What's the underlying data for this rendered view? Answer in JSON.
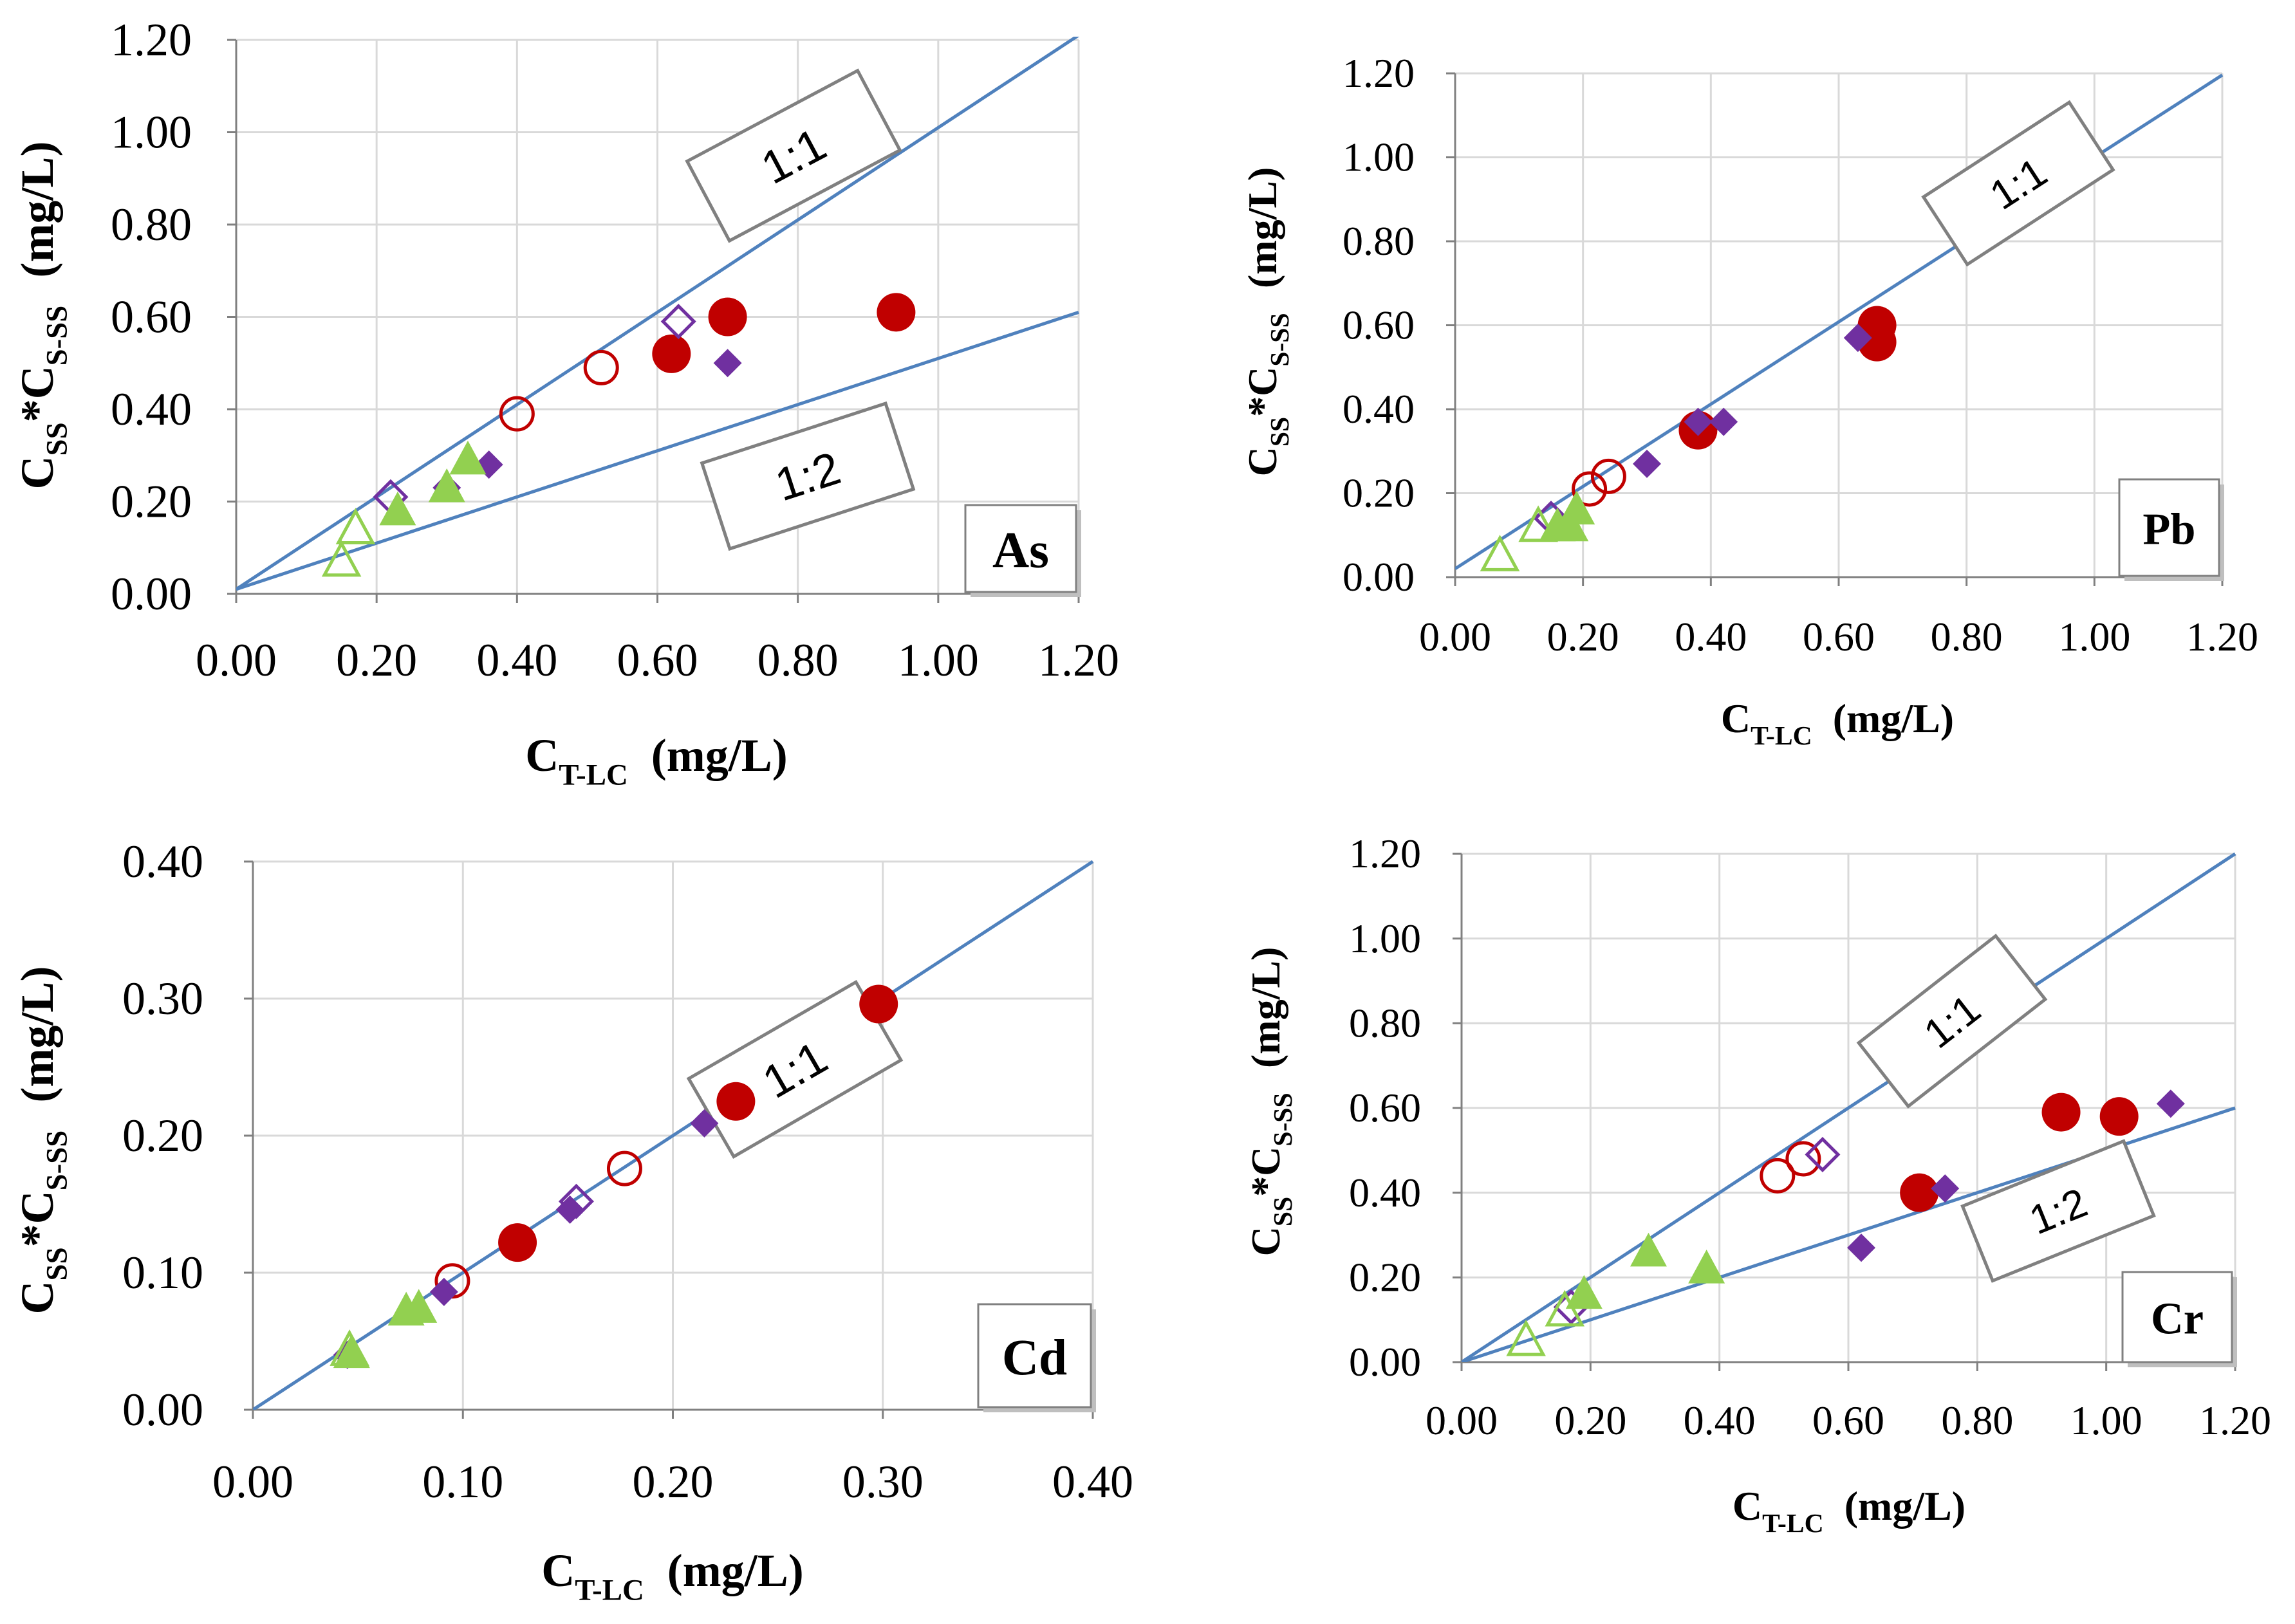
{
  "figure": {
    "description_colors": {
      "red": "#C00000",
      "purple": "#7030A0",
      "green": "#92D050",
      "line": "#4F81BD",
      "grid": "#D9D9D9",
      "box": "#808080"
    }
  },
  "chart_data": [
    {
      "id": "as",
      "type": "scatter",
      "element": "As",
      "xlabel_main": "C",
      "xlabel_sub": "T-LC",
      "xlabel_unit": "(mg/L)",
      "ylabel_c1": "C",
      "ylabel_s1": "SS",
      "ylabel_star": "*",
      "ylabel_c2": "C",
      "ylabel_s2": "S-SS",
      "ylabel_unit": "(mg/L)",
      "xlim": [
        0,
        1.2
      ],
      "ylim": [
        0,
        1.2
      ],
      "xticks": [
        "0.00",
        "0.20",
        "0.40",
        "0.60",
        "0.80",
        "1.00",
        "1.20"
      ],
      "yticks": [
        "0.00",
        "0.20",
        "0.40",
        "0.60",
        "0.80",
        "1.00",
        "1.20"
      ],
      "tick_values": [
        0,
        0.2,
        0.4,
        0.6,
        0.8,
        1.0,
        1.2
      ],
      "lines": [
        {
          "label": "1:1",
          "slope": 1.0,
          "intercept": 0.01
        },
        {
          "label": "1:2",
          "slope": 0.5,
          "intercept": 0.01
        }
      ],
      "series": [
        {
          "name": "red-filled",
          "marker": "circle",
          "filled": true,
          "color": "#C00000",
          "points": [
            [
              0.62,
              0.52
            ],
            [
              0.7,
              0.6
            ],
            [
              0.94,
              0.61
            ]
          ]
        },
        {
          "name": "red-open",
          "marker": "circle",
          "filled": false,
          "color": "#C00000",
          "points": [
            [
              0.4,
              0.39
            ],
            [
              0.52,
              0.49
            ]
          ]
        },
        {
          "name": "purple-filled",
          "marker": "diamond",
          "filled": true,
          "color": "#7030A0",
          "points": [
            [
              0.3,
              0.23
            ],
            [
              0.36,
              0.28
            ],
            [
              0.7,
              0.5
            ]
          ]
        },
        {
          "name": "purple-open",
          "marker": "diamond",
          "filled": false,
          "color": "#7030A0",
          "points": [
            [
              0.22,
              0.21
            ],
            [
              0.63,
              0.59
            ]
          ]
        },
        {
          "name": "green-filled",
          "marker": "triangle",
          "filled": true,
          "color": "#92D050",
          "points": [
            [
              0.23,
              0.18
            ],
            [
              0.3,
              0.23
            ],
            [
              0.33,
              0.29
            ]
          ]
        },
        {
          "name": "green-open",
          "marker": "triangle",
          "filled": false,
          "color": "#92D050",
          "points": [
            [
              0.15,
              0.07
            ],
            [
              0.17,
              0.14
            ]
          ]
        }
      ]
    },
    {
      "id": "pb",
      "type": "scatter",
      "element": "Pb",
      "xlabel_main": "C",
      "xlabel_sub": "T-LC",
      "xlabel_unit": "(mg/L)",
      "ylabel_c1": "C",
      "ylabel_s1": "SS",
      "ylabel_star": "*",
      "ylabel_c2": "C",
      "ylabel_s2": "S-SS",
      "ylabel_unit": "(mg/L)",
      "xlim": [
        0,
        1.2
      ],
      "ylim": [
        0,
        1.2
      ],
      "xticks": [
        "0.00",
        "0.20",
        "0.40",
        "0.60",
        "0.80",
        "1.00",
        "1.20"
      ],
      "yticks": [
        "0.00",
        "0.20",
        "0.40",
        "0.60",
        "0.80",
        "1.00",
        "1.20"
      ],
      "tick_values": [
        0,
        0.2,
        0.4,
        0.6,
        0.8,
        1.0,
        1.2
      ],
      "lines": [
        {
          "label": "1:1",
          "slope": 0.98,
          "intercept": 0.02
        }
      ],
      "series": [
        {
          "name": "red-filled",
          "marker": "circle",
          "filled": true,
          "color": "#C00000",
          "points": [
            [
              0.38,
              0.35
            ],
            [
              0.66,
              0.6
            ],
            [
              0.66,
              0.56
            ]
          ]
        },
        {
          "name": "red-open",
          "marker": "circle",
          "filled": false,
          "color": "#C00000",
          "points": [
            [
              0.21,
              0.21
            ],
            [
              0.24,
              0.24
            ]
          ]
        },
        {
          "name": "purple-filled",
          "marker": "diamond",
          "filled": true,
          "color": "#7030A0",
          "points": [
            [
              0.3,
              0.27
            ],
            [
              0.38,
              0.37
            ],
            [
              0.42,
              0.37
            ],
            [
              0.63,
              0.57
            ]
          ]
        },
        {
          "name": "purple-open",
          "marker": "diamond",
          "filled": false,
          "color": "#7030A0",
          "points": [
            [
              0.15,
              0.14
            ]
          ]
        },
        {
          "name": "green-filled",
          "marker": "triangle",
          "filled": true,
          "color": "#92D050",
          "points": [
            [
              0.16,
              0.12
            ],
            [
              0.18,
              0.12
            ],
            [
              0.19,
              0.16
            ]
          ]
        },
        {
          "name": "green-open",
          "marker": "triangle",
          "filled": false,
          "color": "#92D050",
          "points": [
            [
              0.07,
              0.05
            ],
            [
              0.13,
              0.12
            ]
          ]
        }
      ]
    },
    {
      "id": "cd",
      "type": "scatter",
      "element": "Cd",
      "xlabel_main": "C",
      "xlabel_sub": "T-LC",
      "xlabel_unit": "(mg/L)",
      "ylabel_c1": "C",
      "ylabel_s1": "SS",
      "ylabel_star": "*",
      "ylabel_c2": "C",
      "ylabel_s2": "S-SS",
      "ylabel_unit": "(mg/L)",
      "xlim": [
        0,
        0.4
      ],
      "ylim": [
        0,
        0.4
      ],
      "xticks": [
        "0.00",
        "0.10",
        "0.20",
        "0.30",
        "0.40"
      ],
      "yticks": [
        "0.00",
        "0.10",
        "0.20",
        "0.30",
        "0.40"
      ],
      "tick_values": [
        0,
        0.1,
        0.2,
        0.3,
        0.4
      ],
      "lines": [
        {
          "label": "1:1",
          "slope": 1.0,
          "intercept": 0.0
        }
      ],
      "series": [
        {
          "name": "red-filled",
          "marker": "circle",
          "filled": true,
          "color": "#C00000",
          "points": [
            [
              0.126,
              0.122
            ],
            [
              0.23,
              0.225
            ],
            [
              0.298,
              0.296
            ]
          ]
        },
        {
          "name": "red-open",
          "marker": "circle",
          "filled": false,
          "color": "#C00000",
          "points": [
            [
              0.095,
              0.094
            ],
            [
              0.177,
              0.176
            ]
          ]
        },
        {
          "name": "purple-filled",
          "marker": "diamond",
          "filled": true,
          "color": "#7030A0",
          "points": [
            [
              0.045,
              0.04
            ],
            [
              0.091,
              0.086
            ],
            [
              0.151,
              0.146
            ],
            [
              0.215,
              0.209
            ]
          ]
        },
        {
          "name": "purple-open",
          "marker": "diamond",
          "filled": false,
          "color": "#7030A0",
          "points": [
            [
              0.154,
              0.152
            ]
          ]
        },
        {
          "name": "green-filled",
          "marker": "triangle",
          "filled": true,
          "color": "#92D050",
          "points": [
            [
              0.047,
              0.041
            ],
            [
              0.073,
              0.072
            ],
            [
              0.079,
              0.074
            ]
          ]
        },
        {
          "name": "green-open",
          "marker": "triangle",
          "filled": false,
          "color": "#92D050",
          "points": [
            [
              0.046,
              0.043
            ]
          ]
        }
      ]
    },
    {
      "id": "cr",
      "type": "scatter",
      "element": "Cr",
      "xlabel_main": "C",
      "xlabel_sub": "T-LC",
      "xlabel_unit": "(mg/L)",
      "ylabel_c1": "C",
      "ylabel_s1": "SS",
      "ylabel_star": "*",
      "ylabel_c2": "C",
      "ylabel_s2": "S-SS",
      "ylabel_unit": "(mg/L)",
      "xlim": [
        0,
        1.2
      ],
      "ylim": [
        0,
        1.2
      ],
      "xticks": [
        "0.00",
        "0.20",
        "0.40",
        "0.60",
        "0.80",
        "1.00",
        "1.20"
      ],
      "yticks": [
        "0.00",
        "0.20",
        "0.40",
        "0.60",
        "0.80",
        "1.00",
        "1.20"
      ],
      "tick_values": [
        0,
        0.2,
        0.4,
        0.6,
        0.8,
        1.0,
        1.2
      ],
      "lines": [
        {
          "label": "1:1",
          "slope": 1.0,
          "intercept": 0.0
        },
        {
          "label": "1:2",
          "slope": 0.5,
          "intercept": 0.0
        }
      ],
      "series": [
        {
          "name": "red-filled",
          "marker": "circle",
          "filled": true,
          "color": "#C00000",
          "points": [
            [
              0.71,
              0.4
            ],
            [
              0.93,
              0.59
            ],
            [
              1.02,
              0.58
            ]
          ]
        },
        {
          "name": "red-open",
          "marker": "circle",
          "filled": false,
          "color": "#C00000",
          "points": [
            [
              0.49,
              0.44
            ],
            [
              0.53,
              0.48
            ]
          ]
        },
        {
          "name": "purple-filled",
          "marker": "diamond",
          "filled": true,
          "color": "#7030A0",
          "points": [
            [
              0.62,
              0.27
            ],
            [
              0.75,
              0.41
            ],
            [
              1.1,
              0.61
            ]
          ]
        },
        {
          "name": "purple-open",
          "marker": "diamond",
          "filled": false,
          "color": "#7030A0",
          "points": [
            [
              0.17,
              0.13
            ],
            [
              0.56,
              0.49
            ]
          ]
        },
        {
          "name": "green-filled",
          "marker": "triangle",
          "filled": true,
          "color": "#92D050",
          "points": [
            [
              0.19,
              0.16
            ],
            [
              0.29,
              0.26
            ],
            [
              0.38,
              0.22
            ]
          ]
        },
        {
          "name": "green-open",
          "marker": "triangle",
          "filled": false,
          "color": "#92D050",
          "points": [
            [
              0.1,
              0.05
            ],
            [
              0.16,
              0.12
            ]
          ]
        }
      ]
    }
  ]
}
